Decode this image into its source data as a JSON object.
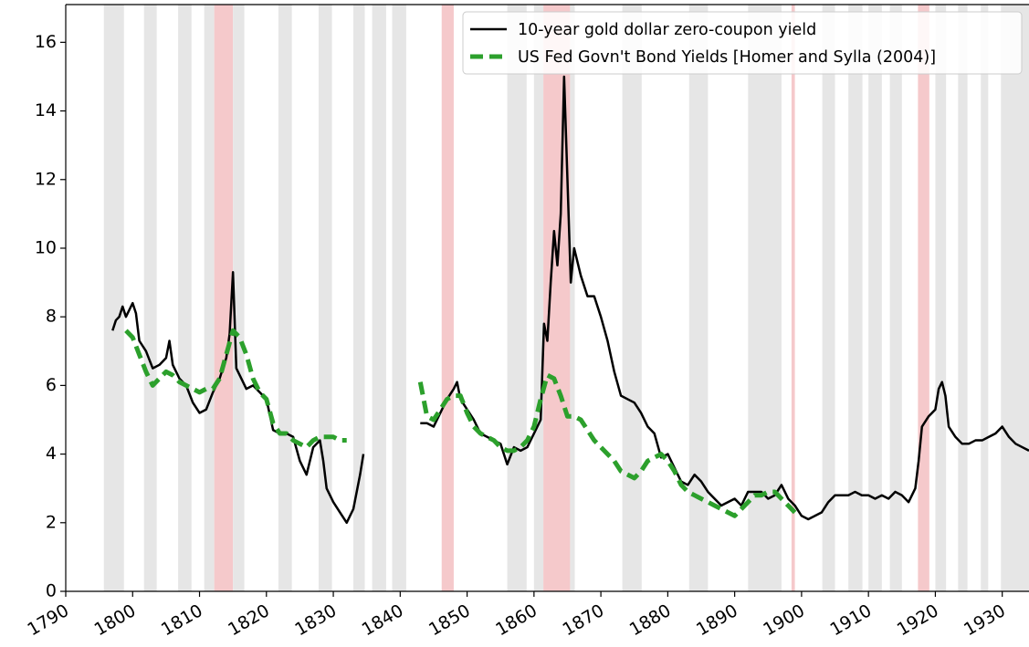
{
  "chart_data": {
    "type": "line",
    "xlim": [
      1790,
      1934
    ],
    "ylim": [
      0,
      17.1
    ],
    "xticks": [
      1790,
      1800,
      1810,
      1820,
      1830,
      1840,
      1850,
      1860,
      1870,
      1880,
      1890,
      1900,
      1910,
      1920,
      1930
    ],
    "yticks": [
      0,
      2,
      4,
      6,
      8,
      10,
      12,
      14,
      16
    ],
    "grid": false,
    "legend": "upper right",
    "shaded_periods": [
      {
        "start": 1795.7,
        "end": 1798.7,
        "color": "#e6e6e6"
      },
      {
        "start": 1801.7,
        "end": 1803.6,
        "color": "#e6e6e6"
      },
      {
        "start": 1806.8,
        "end": 1808.8,
        "color": "#e6e6e6"
      },
      {
        "start": 1810.7,
        "end": 1812.2,
        "color": "#e6e6e6"
      },
      {
        "start": 1812.2,
        "end": 1815.0,
        "color": "#f5c9cb"
      },
      {
        "start": 1815.0,
        "end": 1816.7,
        "color": "#e6e6e6"
      },
      {
        "start": 1821.8,
        "end": 1823.8,
        "color": "#e6e6e6"
      },
      {
        "start": 1827.8,
        "end": 1829.8,
        "color": "#e6e6e6"
      },
      {
        "start": 1833.0,
        "end": 1834.7,
        "color": "#e6e6e6"
      },
      {
        "start": 1835.8,
        "end": 1837.9,
        "color": "#e6e6e6"
      },
      {
        "start": 1838.8,
        "end": 1840.9,
        "color": "#e6e6e6"
      },
      {
        "start": 1846.2,
        "end": 1848.0,
        "color": "#f5c9cb"
      },
      {
        "start": 1856.0,
        "end": 1858.9,
        "color": "#e6e6e6"
      },
      {
        "start": 1860.0,
        "end": 1861.4,
        "color": "#e6e6e6"
      },
      {
        "start": 1861.4,
        "end": 1865.4,
        "color": "#f5c9cb"
      },
      {
        "start": 1865.4,
        "end": 1866.1,
        "color": "#e6e6e6"
      },
      {
        "start": 1873.2,
        "end": 1876.1,
        "color": "#e6e6e6"
      },
      {
        "start": 1883.2,
        "end": 1886.0,
        "color": "#e6e6e6"
      },
      {
        "start": 1892.0,
        "end": 1897.0,
        "color": "#e6e6e6"
      },
      {
        "start": 1898.5,
        "end": 1899.0,
        "color": "#f5c9cb"
      },
      {
        "start": 1903.1,
        "end": 1905.0,
        "color": "#e6e6e6"
      },
      {
        "start": 1907.0,
        "end": 1909.1,
        "color": "#e6e6e6"
      },
      {
        "start": 1910.0,
        "end": 1912.0,
        "color": "#e6e6e6"
      },
      {
        "start": 1913.2,
        "end": 1915.0,
        "color": "#e6e6e6"
      },
      {
        "start": 1917.4,
        "end": 1919.1,
        "color": "#f5c9cb"
      },
      {
        "start": 1920.0,
        "end": 1921.6,
        "color": "#e6e6e6"
      },
      {
        "start": 1923.4,
        "end": 1924.8,
        "color": "#e6e6e6"
      },
      {
        "start": 1926.8,
        "end": 1927.9,
        "color": "#e6e6e6"
      },
      {
        "start": 1929.8,
        "end": 1934.0,
        "color": "#e6e6e6"
      }
    ],
    "series": [
      {
        "name": "10-year gold dollar zero-coupon yield",
        "color": "#000000",
        "dashed": false,
        "x": [
          1797,
          1797.5,
          1798,
          1798.5,
          1799,
          1800,
          1800.5,
          1801,
          1802,
          1803,
          1804,
          1805,
          1805.5,
          1806,
          1807,
          1808,
          1809,
          1810,
          1811,
          1812,
          1813,
          1814,
          1814.5,
          1815,
          1815.5,
          1816,
          1817,
          1818,
          1819,
          1820,
          1821,
          1822,
          1823,
          1824,
          1825,
          1826,
          1827,
          1828,
          1828.5,
          1829,
          1830,
          1831,
          1832,
          1833,
          1834,
          1834.5,
          1838,
          1843,
          1844,
          1845,
          1846,
          1847,
          1848,
          1848.5,
          1849,
          1850,
          1851,
          1852,
          1853,
          1854,
          1855,
          1856,
          1857,
          1858,
          1859,
          1860,
          1861,
          1861.5,
          1862,
          1862.5,
          1863,
          1863.5,
          1864,
          1864.5,
          1865,
          1865.5,
          1866,
          1867,
          1868,
          1869,
          1870,
          1871,
          1872,
          1873,
          1874,
          1875,
          1876,
          1877,
          1878,
          1879,
          1880,
          1881,
          1882,
          1883,
          1884,
          1885,
          1886,
          1887,
          1888,
          1889,
          1890,
          1891,
          1892,
          1893,
          1894,
          1895,
          1896,
          1897,
          1898,
          1899,
          1900,
          1901,
          1902,
          1903,
          1904,
          1905,
          1906,
          1907,
          1908,
          1909,
          1910,
          1911,
          1912,
          1913,
          1914,
          1915,
          1916,
          1917,
          1917.5,
          1918,
          1919,
          1920,
          1920.5,
          1921,
          1921.5,
          1922,
          1923,
          1924,
          1925,
          1926,
          1927,
          1928,
          1929,
          1930,
          1931,
          1932,
          1933,
          1934
        ],
        "values": [
          7.6,
          7.9,
          8.0,
          8.3,
          8.0,
          8.4,
          8.1,
          7.3,
          7.0,
          6.5,
          6.6,
          6.8,
          7.3,
          6.6,
          6.2,
          6.0,
          5.5,
          5.2,
          5.3,
          5.8,
          6.2,
          6.8,
          7.5,
          9.3,
          6.5,
          6.3,
          5.9,
          6.0,
          5.8,
          5.6,
          4.7,
          4.6,
          4.6,
          4.5,
          3.8,
          3.4,
          4.2,
          4.4,
          3.8,
          3.0,
          2.6,
          2.3,
          2.0,
          2.4,
          3.4,
          4.0,
          null,
          4.9,
          4.9,
          4.8,
          5.2,
          5.6,
          5.9,
          6.1,
          5.6,
          5.3,
          5.0,
          4.6,
          4.5,
          4.4,
          4.3,
          3.7,
          4.2,
          4.1,
          4.2,
          4.6,
          5.0,
          7.8,
          7.3,
          9.0,
          10.5,
          9.5,
          11.0,
          15.0,
          12.0,
          9.0,
          10.0,
          9.2,
          8.6,
          8.6,
          8.0,
          7.3,
          6.4,
          5.7,
          5.6,
          5.5,
          5.2,
          4.8,
          4.6,
          3.9,
          4.0,
          3.6,
          3.2,
          3.1,
          3.4,
          3.2,
          2.9,
          2.7,
          2.5,
          2.6,
          2.7,
          2.5,
          2.9,
          2.9,
          2.9,
          2.7,
          2.8,
          3.1,
          2.7,
          2.5,
          2.2,
          2.1,
          2.2,
          2.3,
          2.6,
          2.8,
          2.8,
          2.8,
          2.9,
          2.8,
          2.8,
          2.7,
          2.8,
          2.7,
          2.9,
          2.8,
          2.6,
          3.0,
          3.8,
          4.8,
          5.1,
          5.3,
          5.9,
          6.1,
          5.7,
          4.8,
          4.5,
          4.3,
          4.3,
          4.4,
          4.4,
          4.5,
          4.6,
          4.8,
          4.5,
          4.3,
          4.2,
          4.1
        ]
      },
      {
        "name": "US Fed Govn't Bond Yields [Homer and Sylla (2004)]",
        "color": "#2ca02c",
        "dashed": true,
        "x": [
          1799,
          1800,
          1801,
          1802,
          1803,
          1804,
          1805,
          1806,
          1807,
          1808,
          1809,
          1810,
          1811,
          1812,
          1813,
          1814,
          1815,
          1816,
          1817,
          1818,
          1819,
          1820,
          1821,
          1822,
          1823,
          1824,
          1825,
          1826,
          1827,
          1828,
          1829,
          1830,
          1831,
          1832,
          1838,
          1843,
          1844,
          1845,
          1846,
          1847,
          1848,
          1849,
          1850,
          1851,
          1852,
          1853,
          1854,
          1855,
          1856,
          1857,
          1858,
          1859,
          1860,
          1861,
          1862,
          1863,
          1864,
          1865,
          1866,
          1867,
          1868,
          1869,
          1870,
          1871,
          1872,
          1873,
          1874,
          1875,
          1876,
          1877,
          1878,
          1879,
          1880,
          1881,
          1882,
          1883,
          1884,
          1885,
          1886,
          1887,
          1888,
          1889,
          1890,
          1891,
          1892,
          1893,
          1894,
          1895,
          1896,
          1897,
          1898,
          1899
        ],
        "values": [
          7.6,
          7.4,
          6.9,
          6.4,
          6.0,
          6.2,
          6.4,
          6.3,
          6.1,
          6.0,
          5.9,
          5.8,
          5.9,
          5.9,
          6.2,
          6.9,
          7.6,
          7.4,
          6.9,
          6.2,
          5.8,
          5.6,
          4.9,
          4.6,
          4.6,
          4.4,
          4.3,
          4.2,
          4.4,
          4.5,
          4.5,
          4.5,
          4.4,
          4.4,
          null,
          6.1,
          5.1,
          5.0,
          5.3,
          5.6,
          5.7,
          5.7,
          5.2,
          4.8,
          4.6,
          4.5,
          4.4,
          4.2,
          4.1,
          4.1,
          4.2,
          4.4,
          4.8,
          5.6,
          6.3,
          6.2,
          5.7,
          5.1,
          5.1,
          5.0,
          4.7,
          4.4,
          4.2,
          4.0,
          3.8,
          3.5,
          3.4,
          3.3,
          3.5,
          3.8,
          3.9,
          4.0,
          3.8,
          3.5,
          3.1,
          2.9,
          2.8,
          2.7,
          2.6,
          2.5,
          2.4,
          2.3,
          2.2,
          2.4,
          2.6,
          2.8,
          2.8,
          2.9,
          2.9,
          2.7,
          2.5,
          2.3
        ]
      }
    ]
  }
}
